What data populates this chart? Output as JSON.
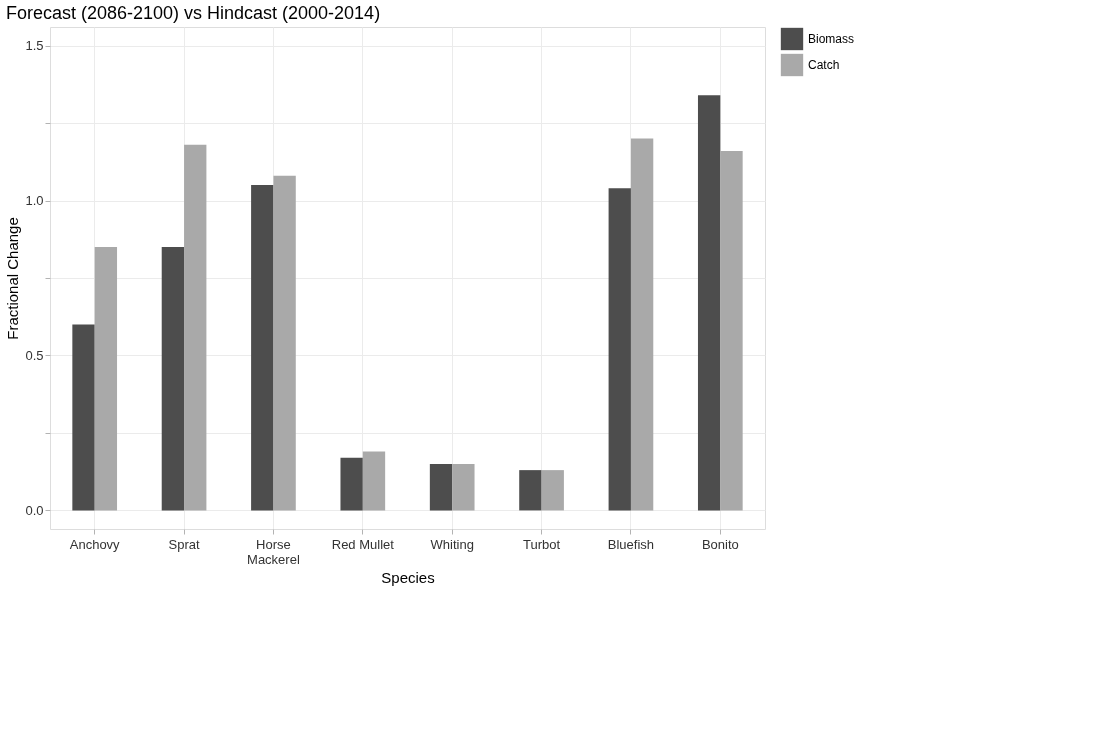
{
  "chart_data": {
    "type": "bar",
    "title": "Forecast (2086-2100) vs Hindcast (2000-2014)",
    "xlabel": "Species",
    "ylabel": "Fractional Change",
    "categories": [
      "Anchovy",
      "Sprat",
      "Horse Mackerel",
      "Red Mullet",
      "Whiting",
      "Turbot",
      "Bluefish",
      "Bonito"
    ],
    "series": [
      {
        "name": "Biomass",
        "color": "#4d4d4d",
        "values": [
          0.6,
          0.85,
          1.05,
          0.17,
          0.15,
          0.13,
          1.04,
          1.34
        ]
      },
      {
        "name": "Catch",
        "color": "#a9a9a9",
        "values": [
          0.85,
          1.18,
          1.08,
          0.19,
          0.15,
          0.13,
          1.2,
          1.16
        ]
      }
    ],
    "ylim": [
      -0.06,
      1.56
    ],
    "yticks": [
      {
        "value": 0,
        "label": "0.0"
      },
      {
        "value": 0.25,
        "label": null
      },
      {
        "value": 0.5,
        "label": "0.5"
      },
      {
        "value": 0.75,
        "label": null
      },
      {
        "value": 1,
        "label": "1.0"
      },
      {
        "value": 1.25,
        "label": null
      },
      {
        "value": 1.5,
        "label": "1.5"
      }
    ],
    "grid": true,
    "legend": "right"
  }
}
